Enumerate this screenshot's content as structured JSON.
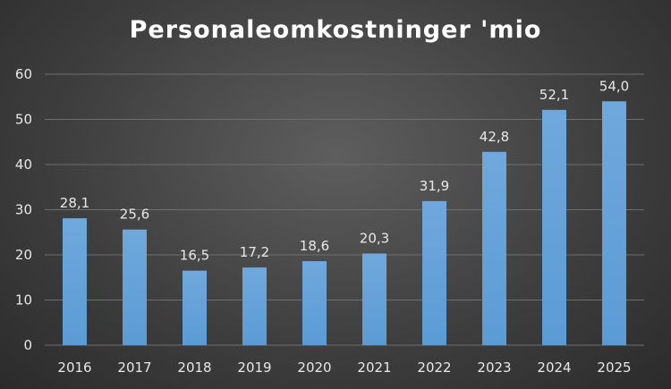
{
  "chart_data": {
    "type": "bar",
    "title": "Personaleomkostninger 'mio",
    "categories": [
      "2016",
      "2017",
      "2018",
      "2019",
      "2020",
      "2021",
      "2022",
      "2023",
      "2024",
      "2025"
    ],
    "values": [
      28.1,
      25.6,
      16.5,
      17.2,
      18.6,
      20.3,
      31.9,
      42.8,
      52.1,
      54.0
    ],
    "data_labels": [
      "28,1",
      "25,6",
      "16,5",
      "17,2",
      "18,6",
      "20,3",
      "31,9",
      "42,8",
      "52,1",
      "54,0"
    ],
    "yticks": [
      "0",
      "10",
      "20",
      "30",
      "40",
      "50",
      "60"
    ],
    "ylim": [
      0,
      60
    ],
    "grid": true,
    "legend": "none",
    "bar_color": "#5b9bd5",
    "bar_color_light": "#6fa8dc",
    "background_color": "#404040"
  }
}
